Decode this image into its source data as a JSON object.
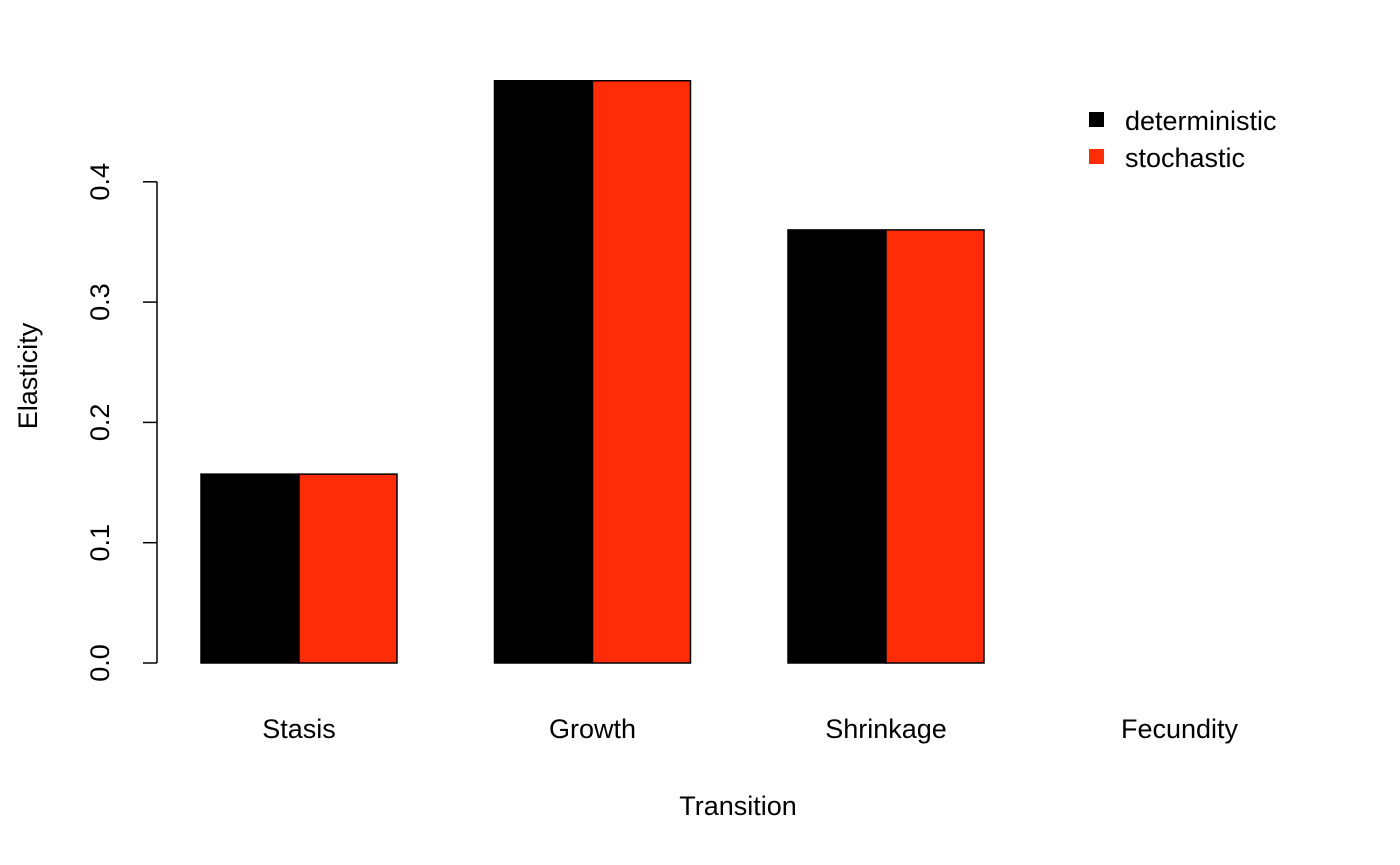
{
  "chart_data": {
    "type": "bar",
    "title": "",
    "xlabel": "Transition",
    "ylabel": "Elasticity",
    "categories": [
      "Stasis",
      "Growth",
      "Shrinkage",
      "Fecundity"
    ],
    "series": [
      {
        "name": "deterministic",
        "color": "#000000",
        "values": [
          0.157,
          0.484,
          0.36,
          0.0
        ]
      },
      {
        "name": "stochastic",
        "color": "#ff2d07",
        "values": [
          0.157,
          0.484,
          0.36,
          0.0
        ]
      }
    ],
    "yticks": [
      "0.0",
      "0.1",
      "0.2",
      "0.3",
      "0.4"
    ],
    "ytick_values": [
      0,
      0.1,
      0.2,
      0.3,
      0.4
    ],
    "ylim": [
      0,
      0.484
    ],
    "grid": false,
    "legend_position": "top-right"
  }
}
